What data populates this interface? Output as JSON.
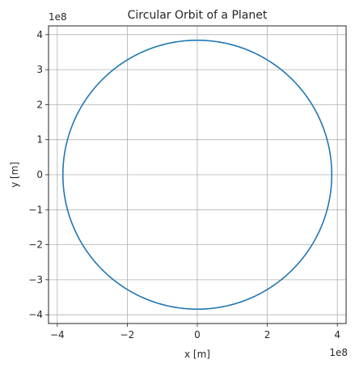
{
  "chart_data": {
    "type": "line",
    "title": "Circular Orbit of a Planet",
    "xlabel": "x [m]",
    "ylabel": "y [m]",
    "xlim": [
      -425000000.0,
      425000000.0
    ],
    "ylim": [
      -425000000.0,
      425000000.0
    ],
    "xticks": [
      -400000000.0,
      -200000000.0,
      0,
      200000000.0,
      400000000.0
    ],
    "yticks": [
      -400000000.0,
      -300000000.0,
      -200000000.0,
      -100000000.0,
      0,
      100000000.0,
      200000000.0,
      300000000.0,
      400000000.0
    ],
    "xtick_labels": [
      "−4",
      "−2",
      "0",
      "2",
      "4"
    ],
    "ytick_labels": [
      "−4",
      "−3",
      "−2",
      "−1",
      "0",
      "1",
      "2",
      "3",
      "4"
    ],
    "x_offset_label": "1e8",
    "y_offset_label": "1e8",
    "grid": true,
    "aspect": "equal",
    "series": [
      {
        "shape": "circle",
        "center": [
          0,
          0
        ],
        "radius": 384000000.0,
        "color": "#1f77b4"
      }
    ]
  }
}
